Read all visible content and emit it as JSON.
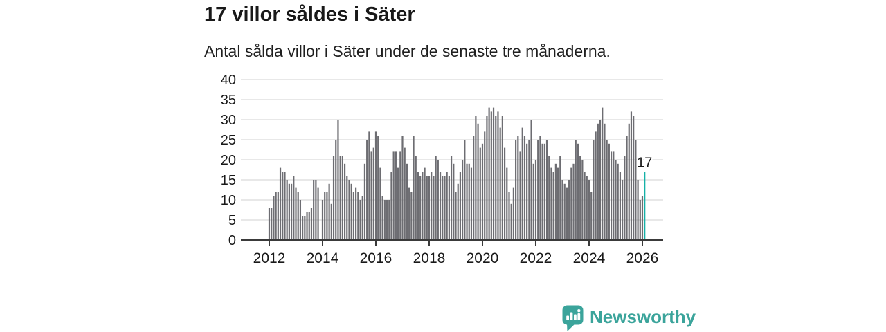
{
  "header": {
    "title": "17 villor såldes i Säter",
    "subtitle": "Antal sålda villor i Säter under de senaste tre månaderna."
  },
  "branding": {
    "name": "Newsworthy",
    "color": "#3ba49b",
    "icon": "bar-chart-speech-bubble-icon"
  },
  "chart_data": {
    "type": "bar",
    "title": "17 villor såldes i Säter",
    "subtitle": "Antal sålda villor i Säter under de senaste tre månaderna.",
    "frequency": "monthly",
    "start_month": "2012-01",
    "end_month": "2026-02",
    "values": [
      8,
      8,
      11,
      12,
      12,
      18,
      17,
      17,
      15,
      14,
      14,
      16,
      13,
      12,
      10,
      6,
      6,
      7,
      7,
      8,
      15,
      15,
      13,
      0,
      10,
      12,
      12,
      14,
      9,
      21,
      25,
      30,
      21,
      21,
      19,
      16,
      15,
      14,
      12,
      13,
      12,
      10,
      11,
      19,
      25,
      27,
      22,
      23,
      27,
      26,
      18,
      11,
      10,
      10,
      10,
      17,
      22,
      22,
      18,
      22,
      26,
      23,
      19,
      13,
      12,
      26,
      21,
      17,
      16,
      17,
      18,
      16,
      16,
      17,
      16,
      21,
      20,
      17,
      16,
      16,
      17,
      16,
      21,
      19,
      12,
      14,
      17,
      20,
      25,
      19,
      19,
      18,
      26,
      31,
      29,
      23,
      24,
      27,
      31,
      33,
      32,
      33,
      31,
      32,
      28,
      31,
      23,
      18,
      12,
      9,
      13,
      25,
      26,
      22,
      28,
      26,
      24,
      25,
      30,
      19,
      20,
      25,
      26,
      24,
      24,
      25,
      21,
      18,
      17,
      19,
      18,
      21,
      15,
      14,
      13,
      15,
      18,
      19,
      25,
      24,
      21,
      20,
      17,
      16,
      15,
      12,
      25,
      27,
      29,
      30,
      33,
      29,
      25,
      24,
      22,
      22,
      20,
      19,
      17,
      15,
      21,
      26,
      29,
      32,
      31,
      25,
      15,
      10,
      11,
      17
    ],
    "ylim": [
      0,
      40
    ],
    "yticks": [
      0,
      5,
      10,
      15,
      20,
      25,
      30,
      35,
      40
    ],
    "xticks": [
      2012,
      2014,
      2016,
      2018,
      2020,
      2022,
      2024,
      2026
    ],
    "grid": true,
    "legend": false,
    "highlight": {
      "index": 169,
      "value": 17,
      "label": "17"
    },
    "colors": {
      "bar": "#6d6d72",
      "highlight": "#14b1a7",
      "grid": "#d9d9d9",
      "axis": "#3a3a3a",
      "text": "#191919"
    }
  }
}
